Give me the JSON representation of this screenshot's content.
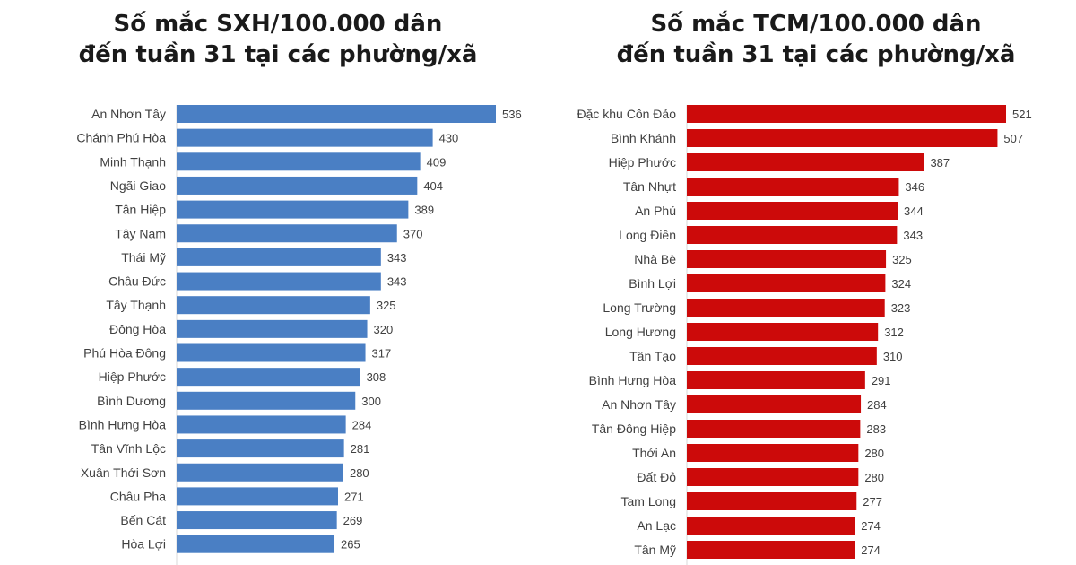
{
  "colors": {
    "left_bar": "#4a7fc4",
    "right_bar": "#cc0a0a",
    "text": "#404040",
    "title": "#1a1a1a",
    "axis": "#d9d9d9"
  },
  "chart_data": [
    {
      "type": "bar",
      "orientation": "horizontal",
      "title_line1": "Số mắc SXH/100.000 dân",
      "title_line2": "đến tuần 31 tại các phường/xã",
      "categories": [
        "An Nhơn Tây",
        "Chánh Phú Hòa",
        "Minh Thạnh",
        "Ngãi Giao",
        "Tân Hiệp",
        "Tây Nam",
        "Thái Mỹ",
        "Châu Đức",
        "Tây Thạnh",
        "Đông Hòa",
        "Phú Hòa Đông",
        "Hiệp Phước",
        "Bình Dương",
        "Bình Hưng Hòa",
        "Tân Vĩnh Lộc",
        "Xuân Thới Sơn",
        "Châu Pha",
        "Bến Cát",
        "Hòa Lợi"
      ],
      "values": [
        536,
        430,
        409,
        404,
        389,
        370,
        343,
        343,
        325,
        320,
        317,
        308,
        300,
        284,
        281,
        280,
        271,
        269,
        265
      ],
      "xlim": [
        0,
        536
      ],
      "grid": false
    },
    {
      "type": "bar",
      "orientation": "horizontal",
      "title_line1": "Số mắc TCM/100.000 dân",
      "title_line2": "đến tuần 31 tại các phường/xã",
      "categories": [
        "Đặc khu Côn Đảo",
        "Bình Khánh",
        "Hiệp Phước",
        "Tân Nhựt",
        "An Phú",
        "Long Điền",
        "Nhà Bè",
        "Bình Lợi",
        "Long Trường",
        "Long Hương",
        "Tân Tạo",
        "Bình Hưng Hòa",
        "An Nhơn Tây",
        "Tân Đông Hiệp",
        "Thới An",
        "Đất Đỏ",
        "Tam Long",
        "An Lạc",
        "Tân Mỹ"
      ],
      "values": [
        521,
        507,
        387,
        346,
        344,
        343,
        325,
        324,
        323,
        312,
        310,
        291,
        284,
        283,
        280,
        280,
        277,
        274,
        274
      ],
      "xlim": [
        0,
        521
      ],
      "grid": false
    }
  ]
}
